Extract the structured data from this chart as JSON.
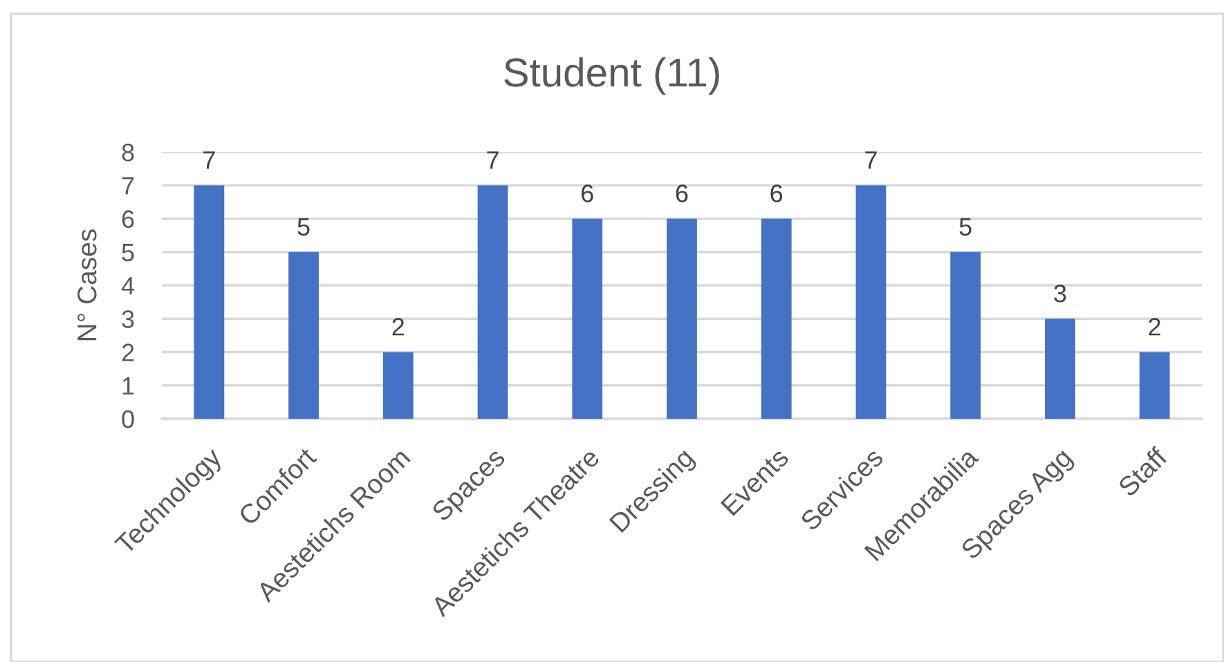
{
  "chart_data": {
    "type": "bar",
    "title": "Student (11)",
    "ylabel": "N° Cases",
    "categories": [
      "Technology",
      "Comfort",
      "Aestetichs Room",
      "Spaces",
      "Aestetichs Theatre",
      "Dressing",
      "Events",
      "Services",
      "Memorabilia",
      "Spaces Agg",
      "Staff"
    ],
    "values": [
      7,
      5,
      2,
      7,
      6,
      6,
      6,
      7,
      5,
      3,
      2
    ],
    "color": "#4472c4",
    "ylim": [
      0,
      8
    ],
    "yticks": [
      0,
      1,
      2,
      3,
      4,
      5,
      6,
      7,
      8
    ],
    "grid": "y",
    "data_labels": true
  }
}
